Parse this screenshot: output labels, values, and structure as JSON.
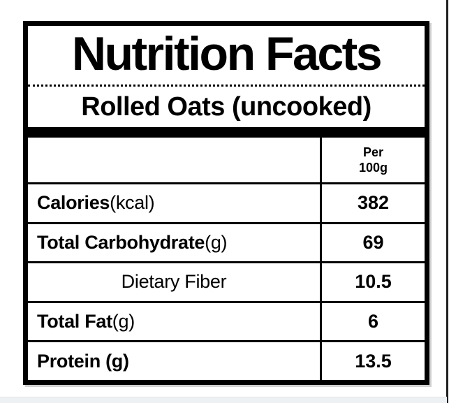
{
  "label": {
    "title": "Nutrition Facts",
    "subtitle": "Rolled Oats (uncooked)",
    "column_header": {
      "line1": "Per",
      "line2": "100g"
    },
    "rows": [
      {
        "name_bold": "Calories",
        "name_rest": " (kcal)",
        "value": "382",
        "style": "normal"
      },
      {
        "name_bold": "Total Carbohydrate",
        "name_rest": " (g)",
        "value": "69",
        "style": "normal"
      },
      {
        "name_bold": "",
        "name_rest": "Dietary Fiber",
        "value": "10.5",
        "style": "sub"
      },
      {
        "name_bold": "Total Fat",
        "name_rest": " (g)",
        "value": "6",
        "style": "normal"
      },
      {
        "name_bold": "Protein (g)",
        "name_rest": "",
        "value": "13.5",
        "style": "normal"
      }
    ]
  },
  "colors": {
    "ink": "#000000",
    "background": "#ffffff",
    "right_edge_line": "#1f1f1f",
    "bottom_strip": "#eef1f3"
  }
}
